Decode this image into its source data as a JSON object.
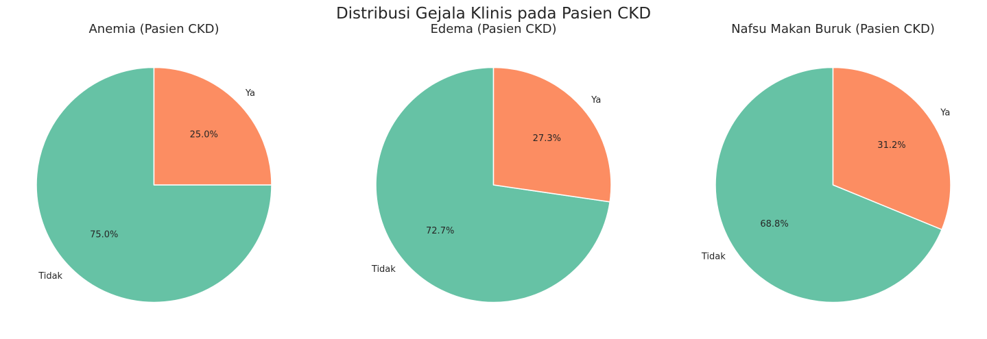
{
  "figure": {
    "title": "Distribusi Gejala Klinis pada Pasien CKD"
  },
  "colors": {
    "Tidak": "#66c2a5",
    "Ya": "#fc8d62",
    "text": "#262626",
    "edge": "#ffffff"
  },
  "chart_data": [
    {
      "type": "pie",
      "title": "Anemia (Pasien CKD)",
      "labels": [
        "Tidak",
        "Ya"
      ],
      "values": [
        75.0,
        25.0
      ],
      "pct_labels": [
        "75.0%",
        "25.0%"
      ],
      "start_angle_deg": 90,
      "direction": "counterclockwise"
    },
    {
      "type": "pie",
      "title": "Edema (Pasien CKD)",
      "labels": [
        "Tidak",
        "Ya"
      ],
      "values": [
        72.7,
        27.3
      ],
      "pct_labels": [
        "72.7%",
        "27.3%"
      ],
      "start_angle_deg": 90,
      "direction": "counterclockwise"
    },
    {
      "type": "pie",
      "title": "Nafsu Makan Buruk (Pasien CKD)",
      "labels": [
        "Tidak",
        "Ya"
      ],
      "values": [
        68.8,
        31.2
      ],
      "pct_labels": [
        "68.8%",
        "31.2%"
      ],
      "start_angle_deg": 90,
      "direction": "counterclockwise"
    }
  ]
}
